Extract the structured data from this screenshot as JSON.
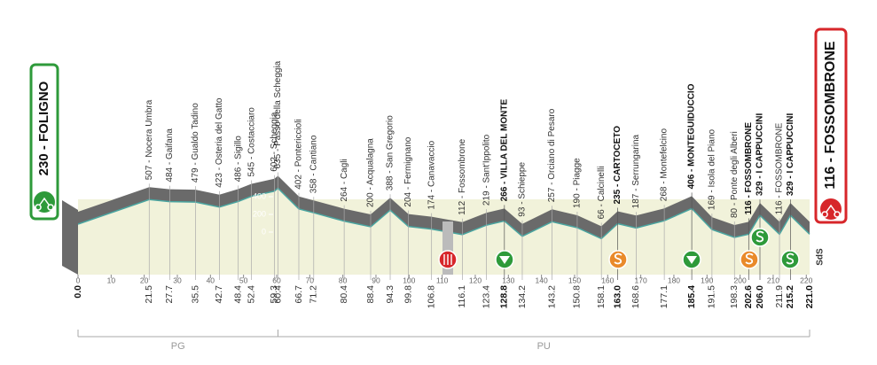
{
  "chart_data": {
    "type": "area",
    "x": [
      0,
      21.5,
      27.7,
      35.5,
      42.7,
      48.4,
      52.4,
      59.3,
      60.4,
      66.7,
      71.2,
      80.4,
      88.4,
      94.3,
      99.8,
      106.8,
      116.1,
      123.4,
      128.8,
      134.2,
      143.2,
      150.8,
      158.1,
      163.0,
      168.6,
      177.1,
      185.4,
      191.5,
      198.3,
      202.6,
      206.0,
      211.9,
      215.2,
      221.0
    ],
    "x_labels": [
      "0.0",
      "21.5",
      "27.7",
      "35.5",
      "42.7",
      "48.4",
      "52.4",
      "59.3",
      "60.4",
      "66.7",
      "71.2",
      "80.4",
      "88.4",
      "94.3",
      "99.8",
      "106.8",
      "116.1",
      "123.4",
      "128.8",
      "134.2",
      "143.2",
      "150.8",
      "158.1",
      "163.0",
      "168.6",
      "177.1",
      "185.4",
      "191.5",
      "198.3",
      "202.6",
      "206.0",
      "211.9",
      "215.2",
      "221.0"
    ],
    "values": [
      230,
      507,
      484,
      479,
      423,
      486,
      545,
      602,
      635,
      402,
      358,
      264,
      200,
      388,
      204,
      174,
      112,
      219,
      266,
      93,
      257,
      190,
      66,
      235,
      187,
      268,
      406,
      169,
      80,
      116,
      329,
      116,
      329,
      116
    ],
    "labels": [
      "230 - FOLIGNO",
      "507 - Nocera Umbra",
      "484 - Gaifana",
      "479 - Gualdo Tadino",
      "423 - Osteria del Gatto",
      "486 - Sigillo",
      "545 - Costacciaro",
      "602 - Scheggia",
      "635 - Passo della Scheggia",
      "402 - Pontericcioli",
      "358 - Cantiano",
      "264 - Cagli",
      "200 - Acqualagna",
      "388 - San Gregorio",
      "204 - Fermignano",
      "174 - Canavaccio",
      "112 - Fossombrone",
      "219 - Sant'Ippolito",
      "266 - VILLA DEL MONTE",
      "93 - Schieppe",
      "257 - Orciano di Pesaro",
      "190 - Piagge",
      "66 - Calcinelli",
      "235 - CARTOCETO",
      "187 - Serrungarina",
      "268 - Montefelcino",
      "406 - MONTEGUIDUCCIO",
      "169 - Isola del Piano",
      "80 - Ponte degli Alberi",
      "116 - FOSSOMBRONE",
      "329 - I CAPPUCCINI",
      "116 - FOSSOMBRONE",
      "329 - I CAPPUCCINI",
      "116 - FOSSOMBRONE"
    ],
    "bold": [
      true,
      false,
      false,
      false,
      false,
      false,
      false,
      false,
      false,
      false,
      false,
      false,
      false,
      false,
      false,
      false,
      false,
      false,
      true,
      false,
      false,
      false,
      false,
      true,
      false,
      false,
      true,
      false,
      false,
      true,
      true,
      false,
      true,
      true
    ],
    "xlim": [
      0,
      221
    ],
    "xticks": [
      0,
      10,
      20,
      30,
      40,
      50,
      60,
      70,
      80,
      90,
      100,
      110,
      120,
      130,
      140,
      150,
      160,
      170,
      180,
      190,
      200,
      210,
      220
    ],
    "ylim": [
      -480,
      720
    ],
    "yticks": [
      0,
      200,
      400
    ],
    "regions": [
      {
        "name": "PG",
        "from": 0,
        "to": 60.4
      },
      {
        "name": "PU",
        "from": 60.4,
        "to": 221
      }
    ],
    "note": "SdS",
    "color": "#6a6a6a",
    "line_color": "#4aa5a0",
    "fill": "#f1f2da"
  }
}
